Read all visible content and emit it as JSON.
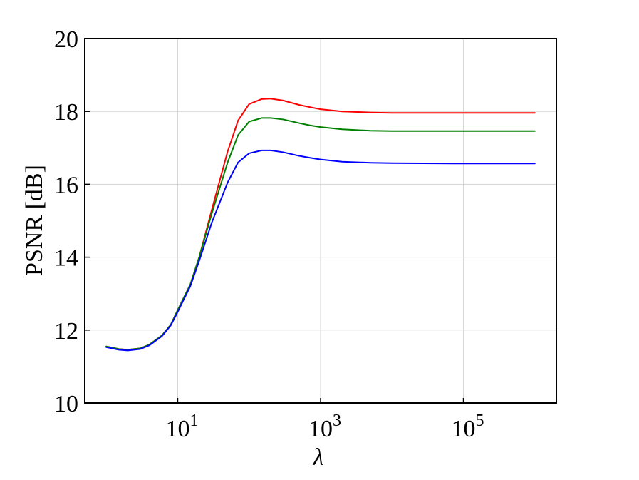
{
  "chart_data": {
    "type": "line",
    "title": "",
    "xlabel": "λ",
    "ylabel": "PSNR [dB]",
    "x_scale": "log",
    "xlim": [
      0.5,
      2000000
    ],
    "ylim": [
      10,
      20
    ],
    "grid": true,
    "legend": "none",
    "x_ticks": [
      {
        "value": 10,
        "base": "10",
        "exp": "1"
      },
      {
        "value": 1000,
        "base": "10",
        "exp": "3"
      },
      {
        "value": 100000,
        "base": "10",
        "exp": "5"
      }
    ],
    "y_ticks": [
      {
        "value": 10,
        "label": "10"
      },
      {
        "value": 12,
        "label": "12"
      },
      {
        "value": 14,
        "label": "14"
      },
      {
        "value": 16,
        "label": "16"
      },
      {
        "value": 18,
        "label": "18"
      },
      {
        "value": 20,
        "label": "20"
      }
    ],
    "x": [
      1,
      1.5,
      2,
      3,
      4,
      6,
      8,
      10,
      15,
      20,
      30,
      50,
      70,
      100,
      150,
      200,
      300,
      500,
      700,
      1000,
      2000,
      5000,
      10000,
      100000,
      1000000
    ],
    "series": [
      {
        "color": "#ff0000",
        "values": [
          11.55,
          11.48,
          11.46,
          11.5,
          11.6,
          11.85,
          12.15,
          12.55,
          13.25,
          14.0,
          15.3,
          16.9,
          17.75,
          18.2,
          18.34,
          18.35,
          18.3,
          18.18,
          18.12,
          18.06,
          18.0,
          17.97,
          17.96,
          17.96,
          17.96
        ]
      },
      {
        "color": "#008000",
        "values": [
          11.55,
          11.48,
          11.46,
          11.5,
          11.6,
          11.85,
          12.15,
          12.55,
          13.25,
          14.0,
          15.2,
          16.6,
          17.35,
          17.72,
          17.82,
          17.82,
          17.78,
          17.68,
          17.62,
          17.57,
          17.51,
          17.47,
          17.46,
          17.46,
          17.46
        ]
      },
      {
        "color": "#0000ff",
        "values": [
          11.53,
          11.46,
          11.44,
          11.48,
          11.58,
          11.83,
          12.13,
          12.5,
          13.2,
          13.9,
          14.95,
          16.05,
          16.6,
          16.85,
          16.93,
          16.93,
          16.88,
          16.78,
          16.73,
          16.68,
          16.62,
          16.59,
          16.58,
          16.57,
          16.57
        ]
      }
    ]
  }
}
